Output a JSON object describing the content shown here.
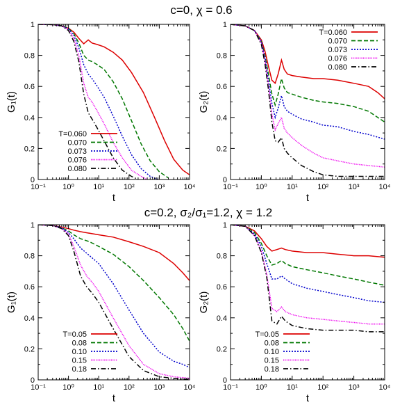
{
  "figure": {
    "row_titles": [
      "c=0,  χ = 0.6",
      "c=0.2,  σ₂/σ₁=1.2,  χ = 1.2"
    ]
  },
  "chart_data": [
    {
      "type": "line",
      "xlabel": "t",
      "ylabel": "G₁(t)",
      "x_scale": "log",
      "xlim": [
        0.1,
        10000
      ],
      "ylim": [
        0,
        1
      ],
      "xticks": [
        "10⁻¹",
        "10⁰",
        "10¹",
        "10²",
        "10³",
        "10⁴"
      ],
      "yticks": [
        "0",
        "0.2",
        "0.4",
        "0.6",
        "0.8",
        "1"
      ],
      "legend": "bottom-left",
      "series": [
        {
          "name": "T=0.060",
          "color": "#dd0000",
          "dash": "solid",
          "x": [
            0.1,
            0.3,
            0.6,
            1,
            1.5,
            2.2,
            3.2,
            4.5,
            6,
            9,
            15,
            30,
            60,
            120,
            300,
            700,
            1500,
            3000,
            6000,
            10000
          ],
          "y": [
            1.0,
            0.998,
            0.99,
            0.975,
            0.95,
            0.91,
            0.875,
            0.9,
            0.88,
            0.87,
            0.855,
            0.82,
            0.77,
            0.69,
            0.56,
            0.4,
            0.25,
            0.13,
            0.06,
            0.03
          ]
        },
        {
          "name": "0.070",
          "color": "#007700",
          "dash": "dash",
          "x": [
            0.1,
            0.3,
            0.6,
            1,
            1.5,
            2.2,
            3.2,
            4.5,
            6,
            9,
            15,
            30,
            60,
            120,
            250,
            500,
            1000,
            2000
          ],
          "y": [
            1.0,
            0.998,
            0.99,
            0.975,
            0.94,
            0.88,
            0.8,
            0.77,
            0.76,
            0.74,
            0.71,
            0.63,
            0.52,
            0.38,
            0.23,
            0.12,
            0.05,
            0.01
          ]
        },
        {
          "name": "0.073",
          "color": "#0000cc",
          "dash": "dot",
          "x": [
            0.1,
            0.3,
            0.6,
            1,
            1.5,
            2.2,
            3.2,
            4.5,
            6,
            9,
            15,
            30,
            60,
            120,
            250,
            500,
            900
          ],
          "y": [
            1.0,
            0.998,
            0.99,
            0.97,
            0.93,
            0.85,
            0.74,
            0.68,
            0.65,
            0.6,
            0.53,
            0.41,
            0.28,
            0.16,
            0.07,
            0.02,
            0.0
          ]
        },
        {
          "name": "0.076",
          "color": "#ee00ee",
          "dash": "fine",
          "x": [
            0.1,
            0.3,
            0.6,
            1,
            1.5,
            2.2,
            3.2,
            4.5,
            6,
            9,
            15,
            30,
            60,
            120,
            250,
            400
          ],
          "y": [
            1.0,
            0.998,
            0.99,
            0.965,
            0.91,
            0.8,
            0.62,
            0.53,
            0.5,
            0.44,
            0.36,
            0.24,
            0.14,
            0.06,
            0.02,
            0.0
          ]
        },
        {
          "name": "0.080",
          "color": "#000000",
          "dash": "dashdot",
          "x": [
            0.1,
            0.3,
            0.6,
            1,
            1.5,
            2.2,
            3.2,
            4.5,
            6,
            9,
            15,
            30,
            60,
            120,
            200
          ],
          "y": [
            1.0,
            0.998,
            0.99,
            0.96,
            0.89,
            0.76,
            0.55,
            0.43,
            0.39,
            0.33,
            0.25,
            0.14,
            0.06,
            0.02,
            0.0
          ]
        }
      ]
    },
    {
      "type": "line",
      "xlabel": "t",
      "ylabel": "G₂(t)",
      "x_scale": "log",
      "xlim": [
        0.1,
        10000
      ],
      "ylim": [
        0,
        1
      ],
      "xticks": [
        "10⁻¹",
        "10⁰",
        "10¹",
        "10²",
        "10³",
        "10⁴"
      ],
      "yticks": [
        "0",
        "0.2",
        "0.4",
        "0.6",
        "0.8",
        "1"
      ],
      "legend": "top-right",
      "series": [
        {
          "name": "T=0.060",
          "color": "#dd0000",
          "dash": "solid",
          "x": [
            0.1,
            0.3,
            0.6,
            1,
            1.3,
            1.7,
            2.2,
            2.8,
            3.5,
            4.5,
            5.5,
            7,
            10,
            20,
            50,
            100,
            300,
            1000,
            3000,
            6000,
            10000
          ],
          "y": [
            1.0,
            0.99,
            0.96,
            0.9,
            0.83,
            0.73,
            0.64,
            0.62,
            0.68,
            0.77,
            0.71,
            0.68,
            0.67,
            0.66,
            0.65,
            0.65,
            0.64,
            0.62,
            0.6,
            0.56,
            0.52
          ]
        },
        {
          "name": "0.070",
          "color": "#007700",
          "dash": "dash",
          "x": [
            0.1,
            0.3,
            0.6,
            1,
            1.3,
            1.7,
            2.2,
            2.8,
            3.5,
            4.5,
            5.5,
            7,
            10,
            20,
            50,
            100,
            300,
            1000,
            3000,
            10000
          ],
          "y": [
            1.0,
            0.99,
            0.96,
            0.89,
            0.8,
            0.68,
            0.55,
            0.48,
            0.55,
            0.65,
            0.59,
            0.56,
            0.55,
            0.53,
            0.51,
            0.5,
            0.49,
            0.47,
            0.44,
            0.37
          ]
        },
        {
          "name": "0.073",
          "color": "#0000cc",
          "dash": "dot",
          "x": [
            0.1,
            0.3,
            0.6,
            1,
            1.3,
            1.7,
            2.2,
            2.8,
            3.5,
            4.5,
            5.5,
            7,
            10,
            20,
            50,
            100,
            300,
            1000,
            3000,
            10000
          ],
          "y": [
            1.0,
            0.99,
            0.96,
            0.89,
            0.79,
            0.64,
            0.49,
            0.4,
            0.46,
            0.54,
            0.47,
            0.44,
            0.42,
            0.39,
            0.37,
            0.35,
            0.34,
            0.31,
            0.29,
            0.26
          ]
        },
        {
          "name": "0.076",
          "color": "#ee00ee",
          "dash": "fine",
          "x": [
            0.1,
            0.3,
            0.6,
            1,
            1.3,
            1.7,
            2.2,
            2.8,
            3.5,
            4.5,
            5.5,
            7,
            10,
            20,
            50,
            100,
            300,
            1000,
            3000,
            10000
          ],
          "y": [
            1.0,
            0.99,
            0.96,
            0.88,
            0.77,
            0.61,
            0.42,
            0.32,
            0.36,
            0.4,
            0.33,
            0.3,
            0.27,
            0.22,
            0.17,
            0.14,
            0.12,
            0.1,
            0.09,
            0.08
          ]
        },
        {
          "name": "0.080",
          "color": "#000000",
          "dash": "dashdot",
          "x": [
            0.1,
            0.3,
            0.6,
            1,
            1.3,
            1.7,
            2.2,
            2.8,
            3.5,
            4.5,
            5.5,
            7,
            10,
            20,
            50,
            100,
            300,
            1000,
            3000,
            10000
          ],
          "y": [
            1.0,
            0.99,
            0.96,
            0.87,
            0.75,
            0.58,
            0.37,
            0.25,
            0.24,
            0.27,
            0.2,
            0.17,
            0.14,
            0.09,
            0.05,
            0.03,
            0.02,
            0.02,
            0.02,
            0.02
          ]
        }
      ]
    },
    {
      "type": "line",
      "xlabel": "t",
      "ylabel": "G₁(t)",
      "x_scale": "log",
      "xlim": [
        0.1,
        10000
      ],
      "ylim": [
        0,
        1
      ],
      "xticks": [
        "10⁻¹",
        "10⁰",
        "10¹",
        "10²",
        "10³",
        "10⁴"
      ],
      "yticks": [
        "0",
        "0.2",
        "0.4",
        "0.6",
        "0.8",
        "1"
      ],
      "legend": "bottom-left",
      "series": [
        {
          "name": "T=0.05",
          "color": "#dd0000",
          "dash": "solid",
          "x": [
            0.1,
            0.3,
            0.6,
            1,
            1.5,
            2.5,
            5,
            10,
            30,
            100,
            300,
            1000,
            3000,
            6000,
            10000
          ],
          "y": [
            1.0,
            0.995,
            0.985,
            0.975,
            0.965,
            0.955,
            0.945,
            0.935,
            0.92,
            0.89,
            0.86,
            0.82,
            0.75,
            0.69,
            0.64
          ]
        },
        {
          "name": "0.08",
          "color": "#007700",
          "dash": "dash",
          "x": [
            0.1,
            0.3,
            0.6,
            1,
            1.5,
            2.5,
            5,
            10,
            30,
            100,
            300,
            1000,
            3000,
            6000,
            10000
          ],
          "y": [
            1.0,
            0.995,
            0.98,
            0.96,
            0.935,
            0.91,
            0.89,
            0.86,
            0.81,
            0.73,
            0.64,
            0.53,
            0.42,
            0.33,
            0.25
          ]
        },
        {
          "name": "0.10",
          "color": "#0000cc",
          "dash": "dot",
          "x": [
            0.1,
            0.3,
            0.6,
            1,
            1.5,
            2.5,
            5,
            10,
            30,
            100,
            300,
            1000,
            3000,
            6000,
            10000
          ],
          "y": [
            1.0,
            0.995,
            0.98,
            0.95,
            0.91,
            0.85,
            0.8,
            0.75,
            0.62,
            0.45,
            0.3,
            0.18,
            0.12,
            0.1,
            0.08
          ]
        },
        {
          "name": "0.15",
          "color": "#ee00ee",
          "dash": "fine",
          "x": [
            0.1,
            0.3,
            0.6,
            1,
            1.5,
            2.5,
            4,
            6,
            10,
            30,
            100,
            300,
            1000,
            3000,
            10000
          ],
          "y": [
            1.0,
            0.995,
            0.975,
            0.94,
            0.86,
            0.74,
            0.67,
            0.63,
            0.57,
            0.4,
            0.22,
            0.1,
            0.04,
            0.02,
            0.01
          ]
        },
        {
          "name": "0.18",
          "color": "#000000",
          "dash": "dashdot",
          "x": [
            0.1,
            0.3,
            0.6,
            1,
            1.5,
            2.5,
            4,
            6,
            10,
            30,
            100,
            300,
            1000,
            3000,
            10000
          ],
          "y": [
            1.0,
            0.995,
            0.975,
            0.93,
            0.83,
            0.67,
            0.6,
            0.56,
            0.5,
            0.33,
            0.15,
            0.06,
            0.02,
            0.01,
            0.0
          ]
        }
      ]
    },
    {
      "type": "line",
      "xlabel": "t",
      "ylabel": "G₂(t)",
      "x_scale": "log",
      "xlim": [
        0.1,
        10000
      ],
      "ylim": [
        0,
        1
      ],
      "xticks": [
        "10⁻¹",
        "10⁰",
        "10¹",
        "10²",
        "10³",
        "10⁴"
      ],
      "yticks": [
        "0",
        "0.2",
        "0.4",
        "0.6",
        "0.8",
        "1"
      ],
      "legend": "bottom-left",
      "series": [
        {
          "name": "T=0.05",
          "color": "#dd0000",
          "dash": "solid",
          "x": [
            0.1,
            0.3,
            0.6,
            1,
            1.5,
            2.2,
            3.2,
            4.5,
            6,
            10,
            30,
            100,
            300,
            1000,
            3000,
            10000
          ],
          "y": [
            1.0,
            0.99,
            0.96,
            0.91,
            0.86,
            0.83,
            0.84,
            0.85,
            0.84,
            0.83,
            0.82,
            0.82,
            0.81,
            0.8,
            0.8,
            0.79
          ]
        },
        {
          "name": "0.08",
          "color": "#007700",
          "dash": "dash",
          "x": [
            0.1,
            0.3,
            0.6,
            1,
            1.5,
            2.2,
            3.2,
            4.5,
            6,
            10,
            30,
            100,
            300,
            1000,
            3000,
            10000
          ],
          "y": [
            1.0,
            0.99,
            0.95,
            0.88,
            0.8,
            0.74,
            0.75,
            0.77,
            0.75,
            0.73,
            0.71,
            0.69,
            0.67,
            0.65,
            0.63,
            0.61
          ]
        },
        {
          "name": "0.10",
          "color": "#0000cc",
          "dash": "dot",
          "x": [
            0.1,
            0.3,
            0.6,
            1,
            1.5,
            2.2,
            3.2,
            4.5,
            6,
            10,
            30,
            100,
            300,
            1000,
            3000,
            10000
          ],
          "y": [
            1.0,
            0.99,
            0.94,
            0.86,
            0.75,
            0.65,
            0.65,
            0.67,
            0.65,
            0.62,
            0.59,
            0.57,
            0.55,
            0.53,
            0.51,
            0.5
          ]
        },
        {
          "name": "0.15",
          "color": "#ee00ee",
          "dash": "fine",
          "x": [
            0.1,
            0.3,
            0.6,
            1,
            1.5,
            2.2,
            3.2,
            4.5,
            6,
            10,
            30,
            100,
            300,
            1000,
            3000,
            10000
          ],
          "y": [
            1.0,
            0.99,
            0.93,
            0.83,
            0.68,
            0.46,
            0.44,
            0.47,
            0.44,
            0.42,
            0.4,
            0.39,
            0.38,
            0.37,
            0.36,
            0.36
          ]
        },
        {
          "name": "0.18",
          "color": "#000000",
          "dash": "dashdot",
          "x": [
            0.1,
            0.3,
            0.6,
            1,
            1.5,
            2.2,
            3.2,
            4.5,
            6,
            10,
            30,
            100,
            300,
            1000,
            3000,
            10000
          ],
          "y": [
            1.0,
            0.99,
            0.93,
            0.82,
            0.66,
            0.38,
            0.36,
            0.41,
            0.38,
            0.35,
            0.33,
            0.32,
            0.32,
            0.32,
            0.31,
            0.31
          ]
        }
      ]
    }
  ]
}
